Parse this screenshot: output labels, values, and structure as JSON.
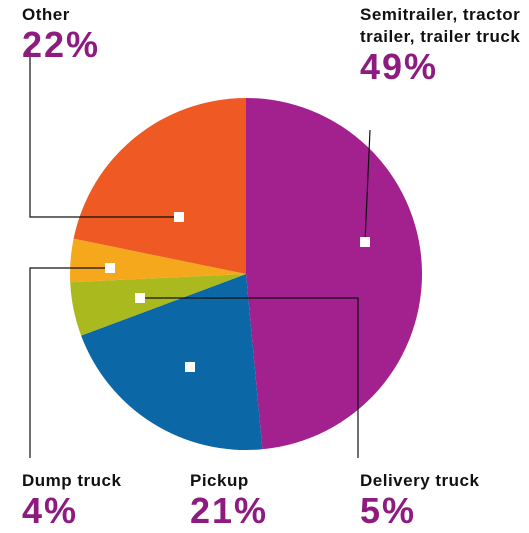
{
  "chart_data": {
    "type": "pie",
    "labels": [
      "Semitrailer, tractor trailer, trailer truck",
      "Pickup",
      "Delivery truck",
      "Dump truck",
      "Other"
    ],
    "values": [
      49,
      21,
      5,
      4,
      22
    ],
    "value_labels": [
      "49%",
      "21%",
      "5%",
      "4%",
      "22%"
    ],
    "colors": [
      "#a3218e",
      "#0b67a6",
      "#aab91e",
      "#f6a81c",
      "#ef5a24"
    ]
  }
}
